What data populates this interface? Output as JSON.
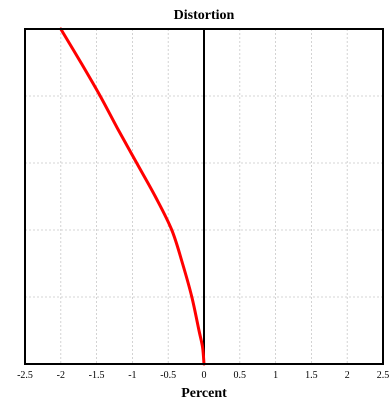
{
  "chart_data": {
    "type": "line",
    "title": "Distortion",
    "xlabel": "Percent",
    "ylabel": "",
    "xlim": [
      -2.5,
      2.5
    ],
    "ylim": [
      0,
      1
    ],
    "x_ticks": [
      -2.5,
      -2,
      -1.5,
      -1,
      -0.5,
      0,
      0.5,
      1,
      1.5,
      2,
      2.5
    ],
    "x_tick_labels": [
      "-2.5",
      "-2",
      "-1.5",
      "-1",
      "-0.5",
      "0",
      "0.5",
      "1",
      "1.5",
      "2",
      "2.5"
    ],
    "y_ticks": [
      0,
      0.2,
      0.4,
      0.6,
      0.8,
      1
    ],
    "y_tick_labels_shown": false,
    "grid": true,
    "legend": "none",
    "series": [
      {
        "color": "#ff0000",
        "points": [
          {
            "x": 0,
            "y": 0
          },
          {
            "x": -0.02,
            "y": 0.05
          },
          {
            "x": -0.07,
            "y": 0.1
          },
          {
            "x": -0.17,
            "y": 0.2
          },
          {
            "x": -0.3,
            "y": 0.3
          },
          {
            "x": -0.45,
            "y": 0.4
          },
          {
            "x": -0.68,
            "y": 0.5
          },
          {
            "x": -0.94,
            "y": 0.6
          },
          {
            "x": -1.2,
            "y": 0.7
          },
          {
            "x": -1.45,
            "y": 0.8
          },
          {
            "x": -1.72,
            "y": 0.9
          },
          {
            "x": -2.0,
            "y": 1.0
          }
        ]
      }
    ],
    "reference_line": {
      "x": 0,
      "color": "#000000"
    }
  }
}
